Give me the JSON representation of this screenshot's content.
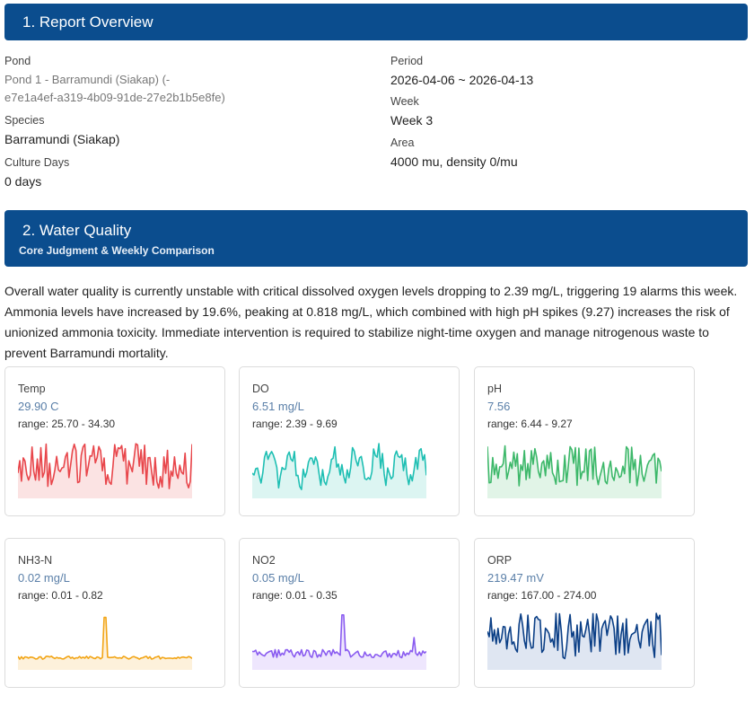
{
  "overview": {
    "title": "1. Report Overview",
    "pond_label": "Pond",
    "pond_value_line1": "Pond 1 - Barramundi (Siakap) (-",
    "pond_value_line2": "e7e1a4ef-a319-4b09-91de-27e2b1b5e8fe)",
    "species_label": "Species",
    "species_value": "Barramundi (Siakap)",
    "culture_label": "Culture Days",
    "culture_value": "0 days",
    "period_label": "Period",
    "period_value": "2026-04-06 ~ 2026-04-13",
    "week_label": "Week",
    "week_value": "Week 3",
    "area_label": "Area",
    "area_value": "4000 mu, density 0/mu"
  },
  "water": {
    "title": "2. Water Quality",
    "subtitle": "Core Judgment & Weekly Comparison",
    "summary": "Overall water quality is currently unstable with critical dissolved oxygen levels dropping to 2.39 mg/L, triggering 19 alarms this week. Ammonia levels have increased by 19.6%, peaking at 0.818 mg/L, which combined with high pH spikes (9.27) increases the risk of unionized ammonia toxicity. Immediate intervention is required to stabilize night-time oxygen and manage nitrogenous waste to prevent Barramundi mortality."
  },
  "cards": [
    {
      "name": "Temp",
      "value": "29.90 C",
      "range": "range: 25.70 - 34.30",
      "color": "#e8464b",
      "fill": "#fbe3e3"
    },
    {
      "name": "DO",
      "value": "6.51 mg/L",
      "range": "range: 2.39 - 9.69",
      "color": "#1fbfb3",
      "fill": "#dcf5f2"
    },
    {
      "name": "pH",
      "value": "7.56",
      "range": "range: 6.44 - 9.27",
      "color": "#3db86a",
      "fill": "#e1f4e7"
    },
    {
      "name": "NH3-N",
      "value": "0.02 mg/L",
      "range": "range: 0.01 - 0.82",
      "color": "#f2a516",
      "fill": "#fdf1db"
    },
    {
      "name": "NO2",
      "value": "0.05 mg/L",
      "range": "range: 0.01 - 0.35",
      "color": "#8a5cf0",
      "fill": "#eee6fd"
    },
    {
      "name": "ORP",
      "value": "219.47 mV",
      "range": "range: 167.00 - 274.00",
      "color": "#0b3f86",
      "fill": "#dfe6f2"
    }
  ]
}
